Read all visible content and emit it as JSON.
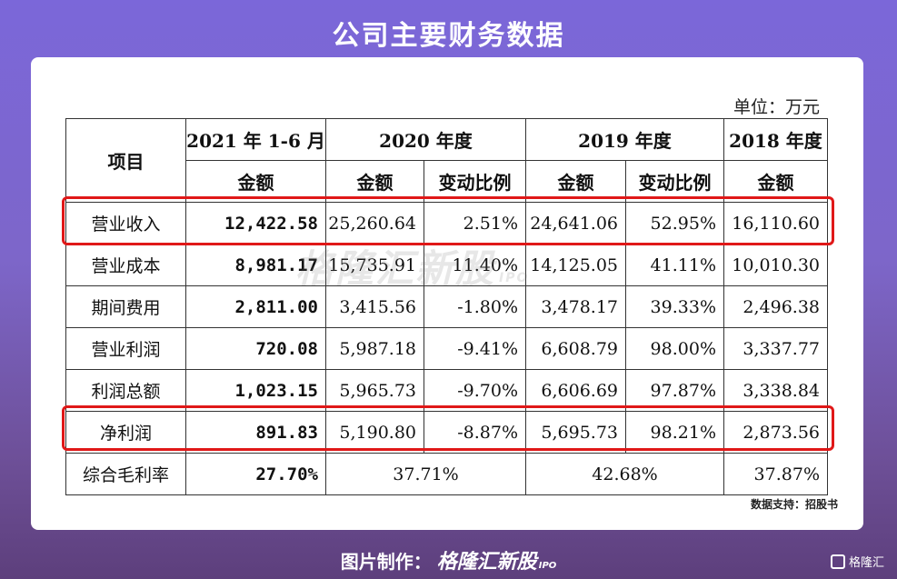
{
  "title": "公司主要财务数据",
  "unit": "单位：万元",
  "table": {
    "header": {
      "item": "项目",
      "periods": [
        "2021 年 1-6 月",
        "2020 年度",
        "2019 年度",
        "2018 年度"
      ],
      "amount": "金额",
      "change": "变动比例"
    },
    "rows": [
      {
        "name": "营业收入",
        "h2021": "12,422.58",
        "a2020": "25,260.64",
        "c2020": "2.51%",
        "a2019": "24,641.06",
        "c2019": "52.95%",
        "a2018": "16,110.60"
      },
      {
        "name": "营业成本",
        "h2021": "8,981.17",
        "a2020": "15,735.91",
        "c2020": "11.40%",
        "a2019": "14,125.05",
        "c2019": "41.11%",
        "a2018": "10,010.30"
      },
      {
        "name": "期间费用",
        "h2021": "2,811.00",
        "a2020": "3,415.56",
        "c2020": "-1.80%",
        "a2019": "3,478.17",
        "c2019": "39.33%",
        "a2018": "2,496.38"
      },
      {
        "name": "营业利润",
        "h2021": "720.08",
        "a2020": "5,987.18",
        "c2020": "-9.41%",
        "a2019": "6,608.79",
        "c2019": "98.00%",
        "a2018": "3,337.77"
      },
      {
        "name": "利润总额",
        "h2021": "1,023.15",
        "a2020": "5,965.73",
        "c2020": "-9.70%",
        "a2019": "6,606.69",
        "c2019": "97.87%",
        "a2018": "3,338.84"
      },
      {
        "name": "净利润",
        "h2021": "891.83",
        "a2020": "5,190.80",
        "c2020": "-8.87%",
        "a2019": "5,695.73",
        "c2019": "98.21%",
        "a2018": "2,873.56"
      }
    ],
    "margin_row": {
      "name": "综合毛利率",
      "h2021": "27.70%",
      "y2020": "37.71%",
      "y2019": "42.68%",
      "y2018": "37.87%"
    }
  },
  "source": "数据支持：招股书",
  "watermark": "格隆汇新股",
  "watermark_ipo": "IPO",
  "footer": {
    "label": "图片制作：",
    "brand": "格隆汇新股",
    "ipo": "IPO"
  },
  "corner_logo": "格隆汇",
  "highlight_color": "#e01818"
}
